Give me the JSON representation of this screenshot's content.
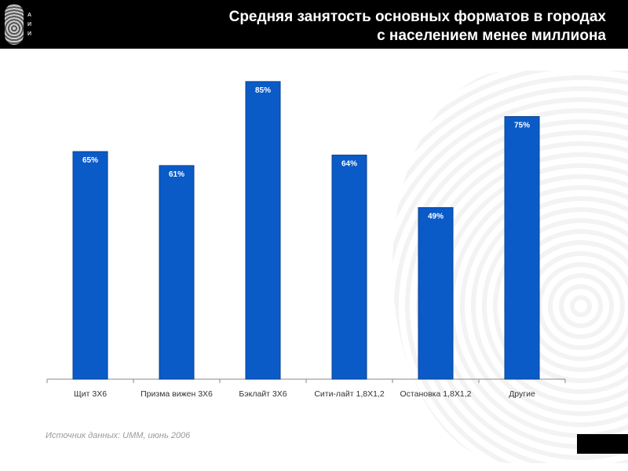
{
  "header": {
    "title_line1": "Средняя занятость основных форматов в городах",
    "title_line2": "с населением менее миллиона",
    "logo_letters": [
      "А",
      "И",
      "И"
    ]
  },
  "chart_data": {
    "type": "bar",
    "title": "Средняя занятость основных форматов в городах с населением менее миллиона",
    "categories": [
      "Щит 3Х6",
      "Призма вижен 3Х6",
      "Бэклайт 3Х6",
      "Сити-лайт 1,8Х1,2",
      "Остановка 1,8Х1,2",
      "Другие"
    ],
    "values": [
      65,
      61,
      85,
      64,
      49,
      75
    ],
    "data_labels": [
      "65%",
      "61%",
      "85%",
      "64%",
      "49%",
      "75%"
    ],
    "unit": "%",
    "ylim": [
      0,
      100
    ],
    "grid": false,
    "bar_color": "#0a5bc8"
  },
  "footer": {
    "source": "Источник данных: UMM, июнь 2006"
  }
}
